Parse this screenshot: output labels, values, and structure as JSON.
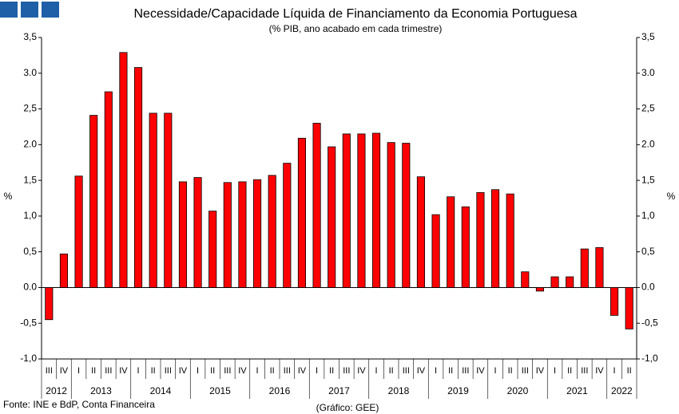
{
  "chart_data": {
    "type": "bar",
    "title": "Necessidade/Capacidade Líquida de Financiamento da Economia Portuguesa",
    "subtitle": "(% PIB, ano acabado em cada trimestre)",
    "y_label": "%",
    "y2_label": "%",
    "source": "Fonte: INE e BdP, Conta Financeira",
    "credit": "(Gráfico: GEE)",
    "categories": [
      "III",
      "IV",
      "I",
      "II",
      "III",
      "IV",
      "I",
      "II",
      "III",
      "IV",
      "I",
      "II",
      "III",
      "IV",
      "I",
      "II",
      "III",
      "IV",
      "I",
      "II",
      "III",
      "IV",
      "I",
      "II",
      "III",
      "IV",
      "I",
      "II",
      "III",
      "IV",
      "I",
      "II",
      "III",
      "IV",
      "I",
      "II",
      "III",
      "IV",
      "I",
      "II"
    ],
    "years": [
      "2012",
      "2013",
      "2014",
      "2015",
      "2016",
      "2017",
      "2018",
      "2019",
      "2020",
      "2021",
      "2022"
    ],
    "values": [
      -0.45,
      0.47,
      1.56,
      2.41,
      2.74,
      3.29,
      3.08,
      2.44,
      2.44,
      1.48,
      1.54,
      1.07,
      1.47,
      1.48,
      1.51,
      1.57,
      1.74,
      2.09,
      2.3,
      1.97,
      2.15,
      2.15,
      2.16,
      2.03,
      2.02,
      1.55,
      1.02,
      1.27,
      1.13,
      1.33,
      1.37,
      1.31,
      0.22,
      -0.05,
      0.15,
      0.15,
      0.54,
      0.56,
      -0.39,
      -0.58
    ],
    "color": "#ff0000",
    "ylim": [
      -1.0,
      3.5
    ],
    "yticks": [
      {
        "value": -1.0,
        "label": "-1,0"
      },
      {
        "value": -0.5,
        "label": "-0,5"
      },
      {
        "value": 0.0,
        "label": "0.0"
      },
      {
        "value": 0.5,
        "label": "0,5"
      },
      {
        "value": 1.0,
        "label": "1,0"
      },
      {
        "value": 1.5,
        "label": "1,5"
      },
      {
        "value": 2.0,
        "label": "2.0"
      },
      {
        "value": 2.5,
        "label": "2,5"
      },
      {
        "value": 3.0,
        "label": "3.0"
      },
      {
        "value": 3.5,
        "label": "3,5"
      }
    ]
  }
}
